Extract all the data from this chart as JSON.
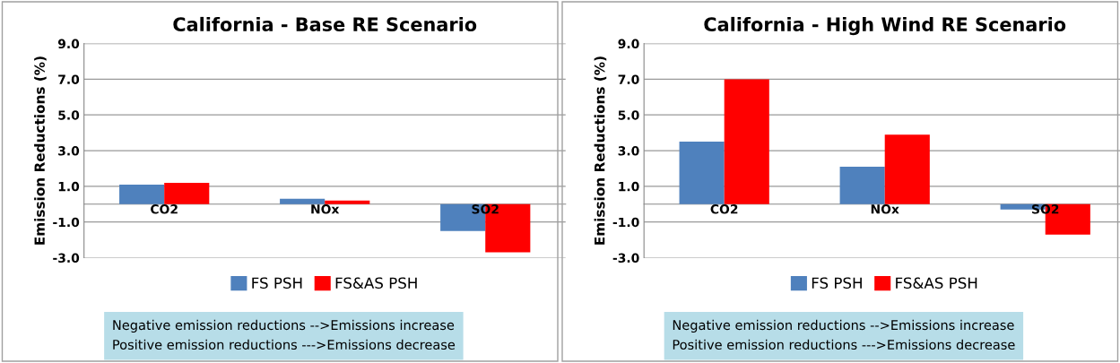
{
  "chart_data": [
    {
      "type": "bar",
      "title": "California - Base RE Scenario",
      "ylabel": "Emission Reductions (%)",
      "categories": [
        "CO2",
        "NOx",
        "SO2"
      ],
      "series": [
        {
          "name": "FS PSH",
          "color": "#4f81bd",
          "values": [
            1.1,
            0.3,
            -1.5
          ]
        },
        {
          "name": "FS&AS PSH",
          "color": "#ff0000",
          "values": [
            1.2,
            0.2,
            -2.7
          ]
        }
      ],
      "ylim": [
        -3.0,
        9.0
      ],
      "yticks": [
        {
          "value": -3,
          "label": "-3.0"
        },
        {
          "value": -1,
          "label": "-1.0"
        },
        {
          "value": 1,
          "label": "1.0"
        },
        {
          "value": 3,
          "label": "3.0"
        },
        {
          "value": 5,
          "label": "5.0"
        },
        {
          "value": 7,
          "label": "7.0"
        },
        {
          "value": 9,
          "label": "9.0"
        }
      ],
      "grid": "y",
      "legend": "bottom",
      "annotations": [
        "Negative emission reductions -->Emissions increase\nPositive emission reductions --->Emissions decrease"
      ]
    },
    {
      "type": "bar",
      "title": "California - High Wind RE Scenario",
      "ylabel": "Emission Reductions (%)",
      "categories": [
        "CO2",
        "NOx",
        "SO2"
      ],
      "series": [
        {
          "name": "FS PSH",
          "color": "#4f81bd",
          "values": [
            3.5,
            2.1,
            -0.3
          ]
        },
        {
          "name": "FS&AS PSH",
          "color": "#ff0000",
          "values": [
            7.0,
            3.9,
            -1.7
          ]
        }
      ],
      "ylim": [
        -3.0,
        9.0
      ],
      "yticks": [
        {
          "value": -3,
          "label": "-3.0"
        },
        {
          "value": -1,
          "label": "-1.0"
        },
        {
          "value": 1,
          "label": "1.0"
        },
        {
          "value": 3,
          "label": "3.0"
        },
        {
          "value": 5,
          "label": "5.0"
        },
        {
          "value": 7,
          "label": "7.0"
        },
        {
          "value": 9,
          "label": "9.0"
        }
      ],
      "grid": "y",
      "legend": "bottom",
      "annotations": [
        "Negative emission reductions -->Emissions increase\nPositive emission reductions --->Emissions decrease"
      ]
    }
  ]
}
